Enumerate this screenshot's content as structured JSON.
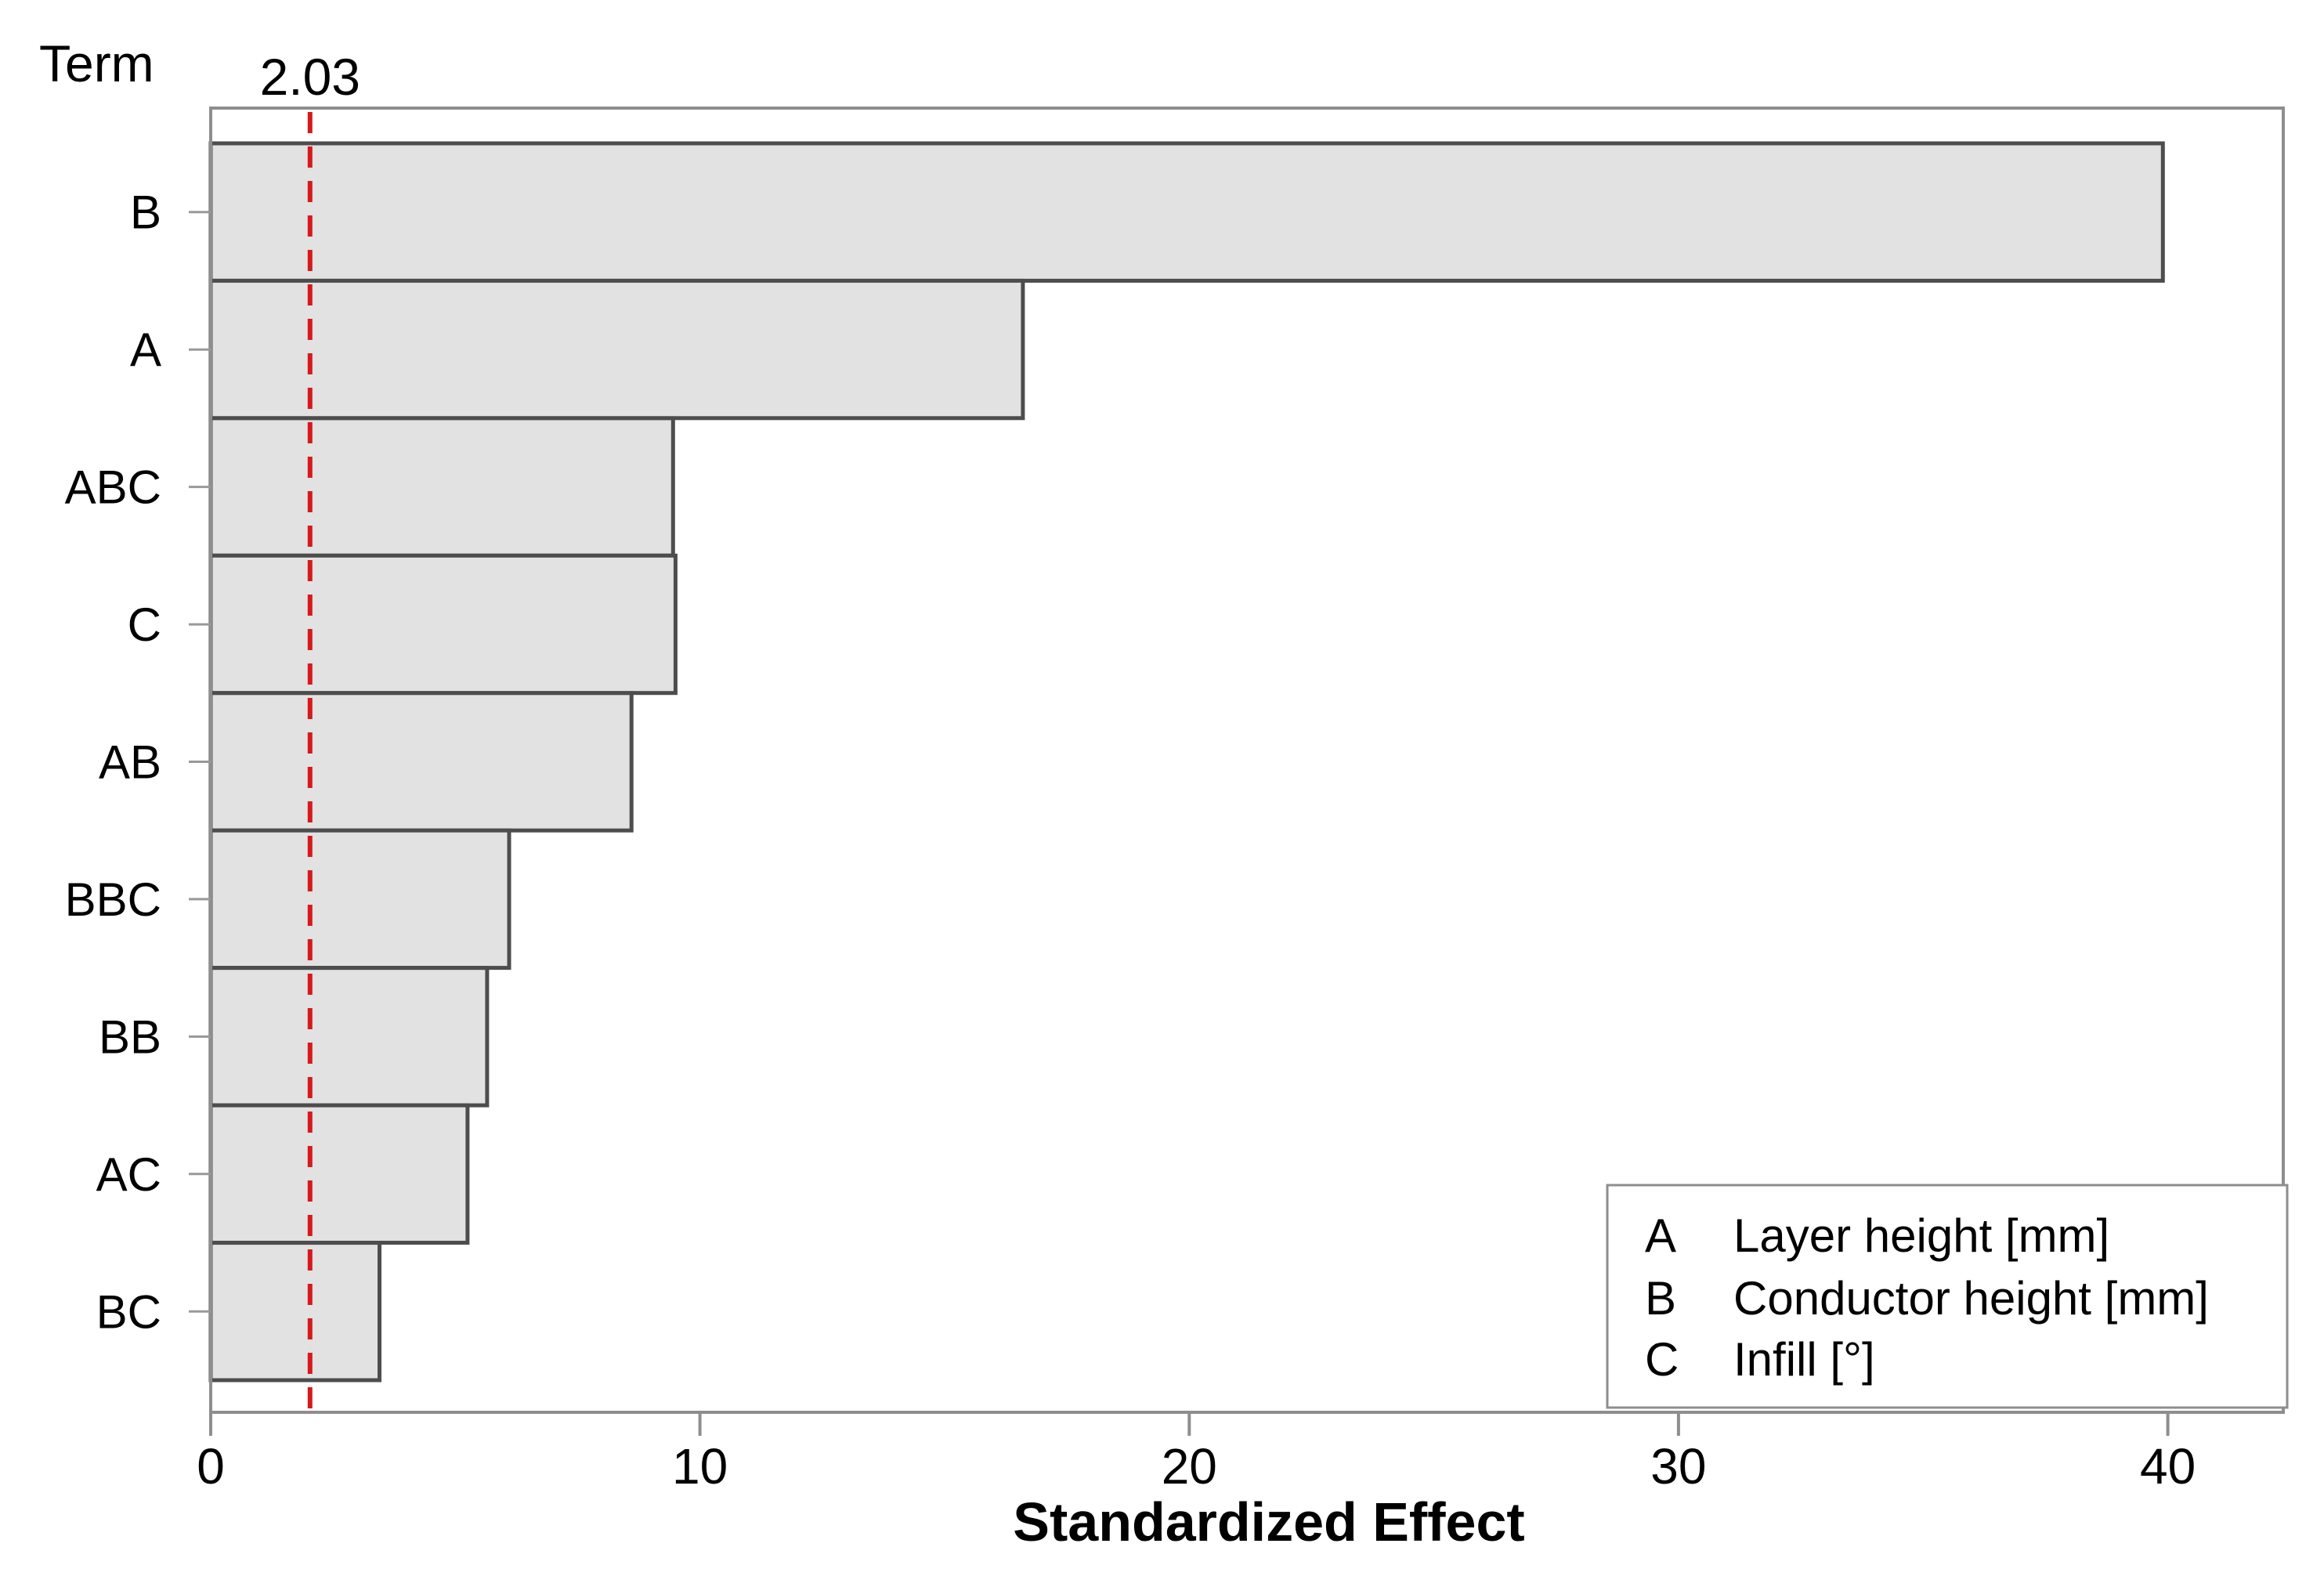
{
  "chart_data": {
    "type": "bar",
    "orientation": "horizontal",
    "y_axis_title": "Term",
    "xlabel": "Standardized Effect",
    "categories": [
      "B",
      "A",
      "ABC",
      "C",
      "AB",
      "BBC",
      "BB",
      "AC",
      "BC"
    ],
    "values": [
      39.9,
      16.6,
      9.45,
      9.5,
      8.6,
      6.1,
      5.65,
      5.25,
      3.45
    ],
    "x_ticks": [
      0,
      10,
      20,
      30,
      40
    ],
    "xlim": [
      0,
      42.36
    ],
    "grid": false,
    "reference_line": {
      "value": 2.03,
      "label": "2.03"
    },
    "colors": {
      "bar_fill": "#e2e2e2",
      "bar_stroke": "#4d4d4d",
      "frame": "#8e8e8e",
      "y_tick": "#999999",
      "reference_line": "#d6191c",
      "reference_label": "#a32424",
      "text": "#000000"
    },
    "legend": {
      "position": "bottom-right",
      "items": [
        {
          "key": "A",
          "label": "Layer height [mm]"
        },
        {
          "key": "B",
          "label": "Conductor height [mm]"
        },
        {
          "key": "C",
          "label": "Infill [°]"
        }
      ]
    }
  }
}
